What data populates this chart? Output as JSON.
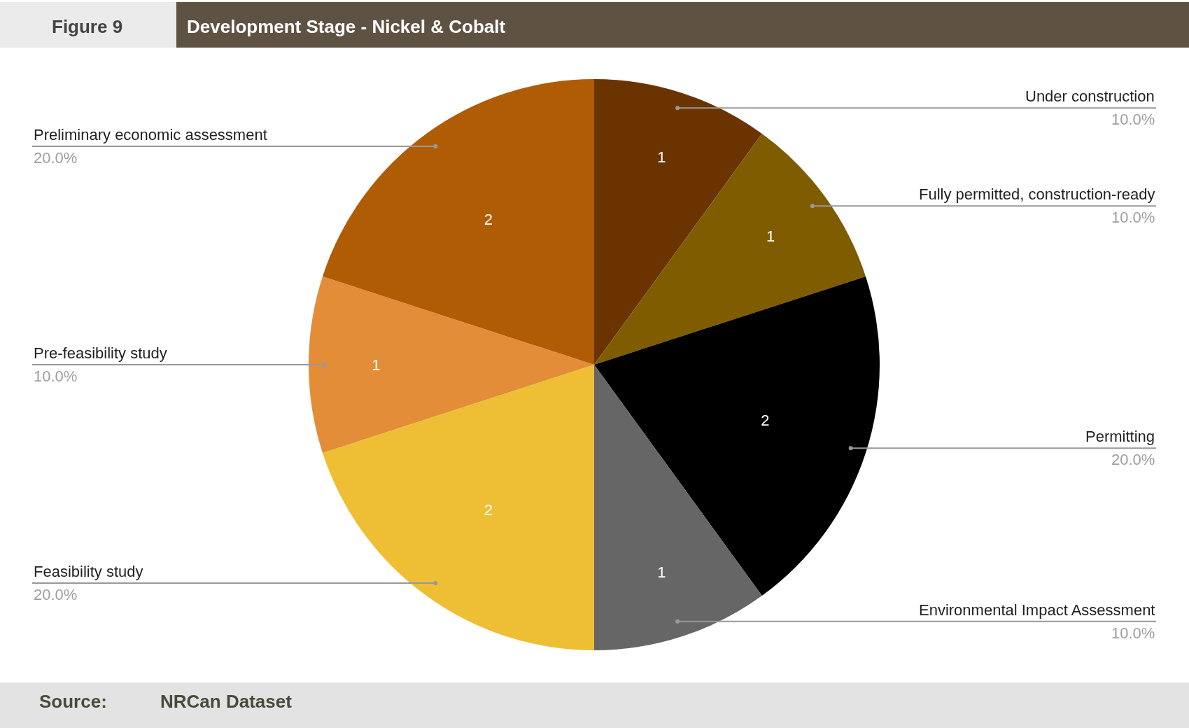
{
  "chart_data": {
    "type": "pie",
    "title": "Development Stage - Nickel & Cobalt",
    "subtitle": "Figure 9",
    "categories": [
      "Under construction",
      "Fully permitted, construction-ready",
      "Permitting",
      "Environmental Impact Assessment",
      "Feasibility study",
      "Pre-feasibility study",
      "Preliminary economic assessment"
    ],
    "values": [
      1,
      1,
      2,
      1,
      2,
      1,
      2
    ],
    "colors": [
      "#6b3300",
      "#7f5c00",
      "#000000",
      "#666666",
      "#eebf34",
      "#e38d39",
      "#b05c05"
    ],
    "data_labels": true,
    "legend": false,
    "annotations": [
      "Source:",
      "NRCan Dataset",
      {
        "text": "10.0%",
        "x": "Under construction"
      },
      {
        "text": "10.0%",
        "x": "Fully permitted, construction-ready"
      },
      {
        "text": "20.0%",
        "x": "Permitting"
      },
      {
        "text": "10.0%",
        "x": "Environmental Impact Assessment"
      },
      {
        "text": "20.0%",
        "x": "Feasibility study"
      },
      {
        "text": "10.0%",
        "x": "Pre-feasibility study"
      },
      {
        "text": "20.0%",
        "x": "Preliminary economic assessment"
      }
    ]
  }
}
